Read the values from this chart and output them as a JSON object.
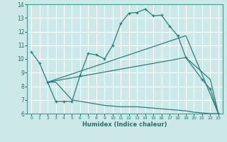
{
  "title": "",
  "xlabel": "Humidex (Indice chaleur)",
  "bg_color": "#cce8e8",
  "grid_color": "#ffffff",
  "line_color": "#2d7d78",
  "xlim": [
    -0.5,
    23.5
  ],
  "ylim": [
    6,
    14
  ],
  "xticks": [
    0,
    1,
    2,
    3,
    4,
    5,
    6,
    7,
    8,
    9,
    10,
    11,
    12,
    13,
    14,
    15,
    16,
    17,
    18,
    19,
    20,
    21,
    22,
    23
  ],
  "yticks": [
    6,
    7,
    8,
    9,
    10,
    11,
    12,
    13,
    14
  ],
  "line1_x": [
    0,
    1,
    2,
    3,
    4,
    5,
    6,
    7,
    8,
    9,
    10,
    11,
    12,
    13,
    14,
    15,
    16,
    17,
    18,
    19,
    21,
    22,
    23
  ],
  "line1_y": [
    10.5,
    9.7,
    8.3,
    6.9,
    6.9,
    6.9,
    8.8,
    10.4,
    10.3,
    10.0,
    11.0,
    12.6,
    13.35,
    13.4,
    13.65,
    13.15,
    13.2,
    12.4,
    11.7,
    10.1,
    8.5,
    7.8,
    6.0
  ],
  "line2_x": [
    2,
    3,
    5,
    9,
    10,
    11,
    12,
    13,
    14,
    15,
    16,
    17,
    18,
    19,
    20,
    21,
    22,
    23
  ],
  "line2_y": [
    8.3,
    8.3,
    7.0,
    6.6,
    6.55,
    6.5,
    6.5,
    6.5,
    6.45,
    6.4,
    6.35,
    6.3,
    6.25,
    6.2,
    6.1,
    6.05,
    6.0,
    6.0
  ],
  "line3_x": [
    2,
    19,
    23
  ],
  "line3_y": [
    8.3,
    11.7,
    6.0
  ],
  "line4_x": [
    2,
    19,
    22,
    23
  ],
  "line4_y": [
    8.3,
    10.1,
    8.5,
    6.0
  ]
}
